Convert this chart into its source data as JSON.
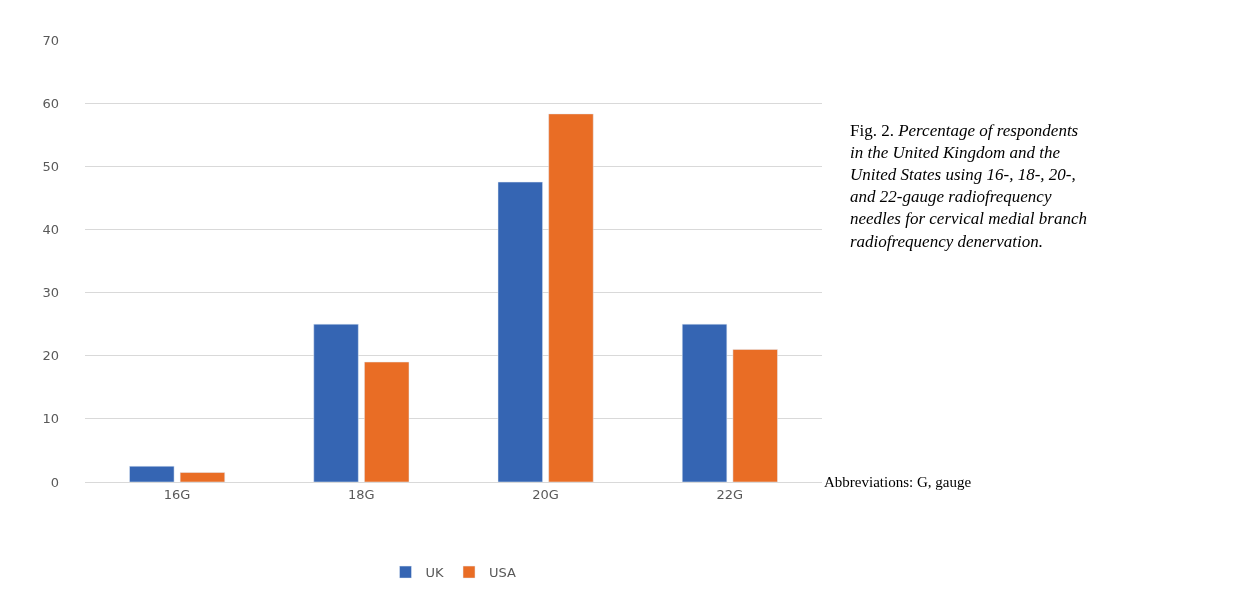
{
  "chart_data": {
    "type": "bar",
    "categories": [
      "16G",
      "18G",
      "20G",
      "22G"
    ],
    "series": [
      {
        "name": "UK",
        "color": "#3565b3",
        "values": [
          2.5,
          25,
          47.5,
          25
        ]
      },
      {
        "name": "USA",
        "color": "#e96d25",
        "values": [
          1.5,
          19,
          58.3,
          21
        ]
      }
    ],
    "ylim": [
      0,
      70
    ],
    "yticks": [
      0,
      10,
      20,
      30,
      40,
      50,
      60,
      70
    ],
    "grid": "y",
    "legend": "bottom",
    "annotations": [
      "Fig. 2. Percentage of respondents in the United Kingdom and the United States using 16-, 18-, 20-, and 22-gauge radiofrequency needles for cervical medial branch radiofrequency denervation.",
      "Abbreviations: G, gauge"
    ]
  }
}
